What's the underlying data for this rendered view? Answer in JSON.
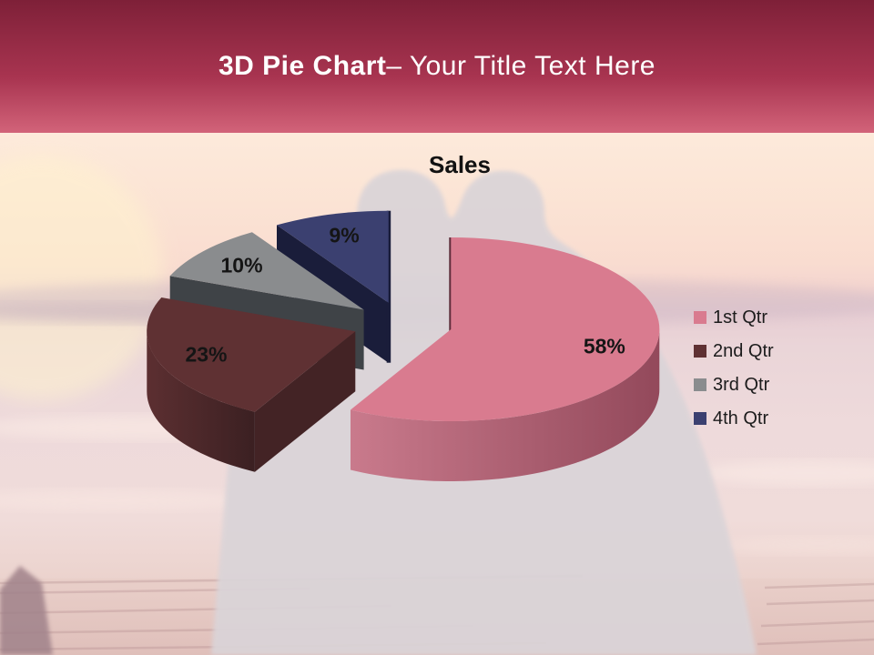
{
  "banner": {
    "title_bold": "3D Pie Chart",
    "title_rest": "– Your Title Text Here",
    "bg_top": "#7E2038",
    "bg_mid": "#A83450",
    "bg_bottom": "#D26379",
    "text_color": "#FFFFFF"
  },
  "chart_data": {
    "type": "pie",
    "style": "3d-exploded",
    "title": "Sales",
    "categories": [
      "1st Qtr",
      "2nd Qtr",
      "3rd Qtr",
      "4th Qtr"
    ],
    "values": [
      58,
      23,
      10,
      9
    ],
    "data_labels": [
      "58%",
      "23%",
      "10%",
      "9%"
    ],
    "colors": [
      "#D97B8F",
      "#5F3133",
      "#8A8C8E",
      "#3B4070"
    ],
    "side_colors": [
      [
        "#C97A8C",
        "#93495B"
      ],
      [
        "#5C2F31",
        "#3B2022"
      ],
      [
        "#55595D",
        "#3F4347"
      ],
      [
        "#23274D",
        "#14172F"
      ]
    ],
    "wall_colors": [
      "#5E2C3A",
      "#432325",
      "#3F4347",
      "#1A1D3A"
    ],
    "label_text_color": "#151515",
    "legend_position": "right",
    "start_angle_deg": 0
  }
}
